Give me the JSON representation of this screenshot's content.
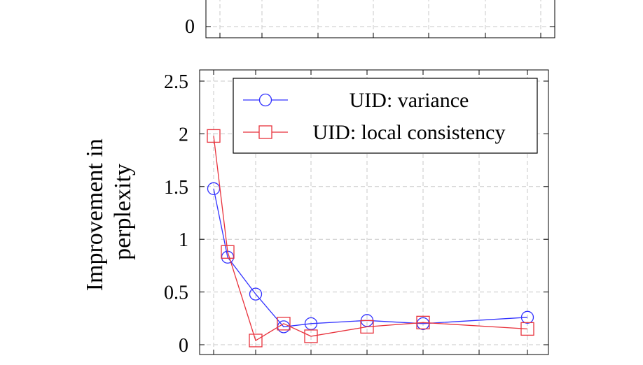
{
  "chart_data": [
    {
      "type": "line",
      "partial": true,
      "title": "",
      "xlabel": "",
      "ylabel": "",
      "y_tick_labels": [
        "0"
      ],
      "grid": true
    },
    {
      "type": "line",
      "title": "",
      "xlabel": "",
      "ylabel": "Improvement in perplexity",
      "ylabel_lines": [
        "Improvement in",
        "perplexity"
      ],
      "ylim": [
        0,
        2.6
      ],
      "y_ticks": [
        0,
        0.5,
        1,
        1.5,
        2,
        2.5
      ],
      "y_tick_labels": [
        "0",
        "0.5",
        "1",
        "1.5",
        "2",
        "2.5"
      ],
      "x_ticks": [
        1,
        2,
        4,
        6,
        8,
        12,
        16,
        24
      ],
      "xlim": [
        0.4,
        25.1
      ],
      "grid": true,
      "legend_position": "top-right",
      "colors": {
        "variance": "#3333ff",
        "local_consistency": "#e8323c"
      },
      "series": [
        {
          "name": "UID: variance",
          "marker": "circle",
          "color": "#3333ff",
          "x": [
            1,
            2,
            4,
            6,
            8,
            12,
            16,
            24
          ],
          "y": [
            1.48,
            0.83,
            0.48,
            0.17,
            0.2,
            0.23,
            0.2,
            0.26
          ]
        },
        {
          "name": "UID: local consistency",
          "marker": "square",
          "color": "#e8323c",
          "x": [
            1,
            2,
            4,
            6,
            8,
            12,
            16,
            24
          ],
          "y": [
            1.98,
            0.88,
            0.04,
            0.2,
            0.08,
            0.17,
            0.21,
            0.15
          ]
        }
      ]
    }
  ]
}
